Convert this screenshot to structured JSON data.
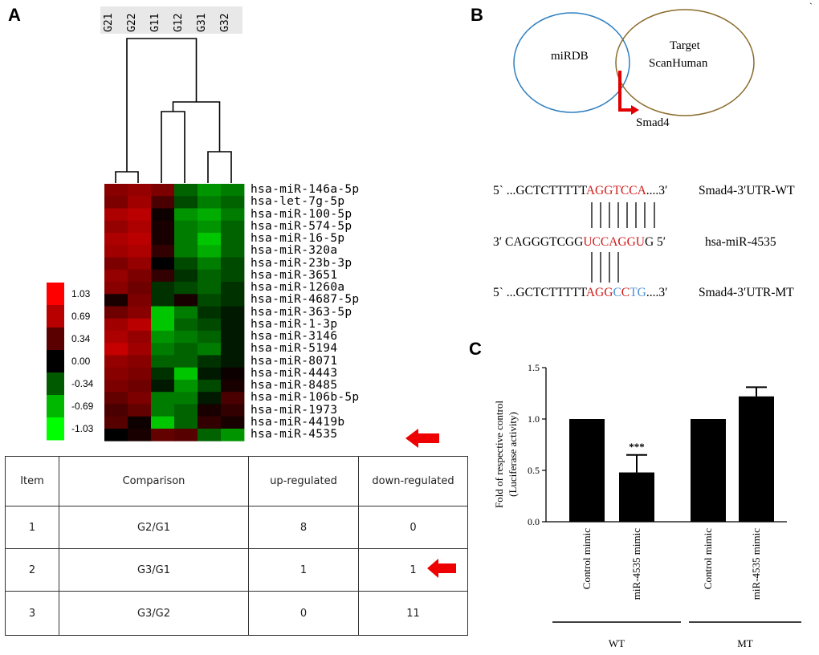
{
  "panels": {
    "a": "A",
    "b": "B",
    "c": "C"
  },
  "dendrogram": {
    "sample_labels": [
      "G21",
      "G22",
      "G11",
      "G12",
      "G31",
      "G32"
    ]
  },
  "heatmap": {
    "mirnas": [
      "hsa-miR-146a-5p",
      "hsa-let-7g-5p",
      "hsa-miR-100-5p",
      "hsa-miR-574-5p",
      "hsa-miR-16-5p",
      "hsa-miR-320a",
      "hsa-miR-23b-3p",
      "hsa-miR-3651",
      "hsa-miR-1260a",
      "hsa-miR-4687-5p",
      "hsa-miR-363-5p",
      "hsa-miR-1-3p",
      "hsa-miR-3146",
      "hsa-miR-5194",
      "hsa-miR-8071",
      "hsa-miR-4443",
      "hsa-miR-8485",
      "hsa-miR-106b-5p",
      "hsa-miR-1973",
      "hsa-miR-4419b",
      "hsa-miR-4535"
    ],
    "values": [
      [
        0.55,
        0.6,
        0.5,
        -0.4,
        -0.6,
        -0.5
      ],
      [
        0.5,
        0.65,
        0.3,
        -0.3,
        -0.5,
        -0.4
      ],
      [
        0.7,
        0.75,
        0.05,
        -0.6,
        -0.7,
        -0.5
      ],
      [
        0.6,
        0.7,
        0.1,
        -0.5,
        -0.6,
        -0.4
      ],
      [
        0.7,
        0.75,
        0.1,
        -0.5,
        -0.8,
        -0.4
      ],
      [
        0.65,
        0.7,
        0.2,
        -0.5,
        -0.7,
        -0.4
      ],
      [
        0.5,
        0.6,
        0.0,
        -0.3,
        -0.5,
        -0.3
      ],
      [
        0.6,
        0.5,
        0.2,
        -0.2,
        -0.4,
        -0.3
      ],
      [
        0.55,
        0.45,
        -0.2,
        -0.3,
        -0.4,
        -0.2
      ],
      [
        0.1,
        0.5,
        -0.2,
        0.1,
        -0.3,
        -0.2
      ],
      [
        0.45,
        0.55,
        -0.8,
        -0.5,
        -0.2,
        -0.1
      ],
      [
        0.65,
        0.75,
        -0.8,
        -0.4,
        -0.3,
        -0.1
      ],
      [
        0.7,
        0.6,
        -0.6,
        -0.5,
        -0.4,
        -0.1
      ],
      [
        0.8,
        0.65,
        -0.5,
        -0.4,
        -0.5,
        -0.1
      ],
      [
        0.6,
        0.55,
        -0.4,
        -0.4,
        -0.2,
        -0.1
      ],
      [
        0.55,
        0.5,
        -0.2,
        -0.8,
        -0.1,
        0.05
      ],
      [
        0.5,
        0.45,
        -0.1,
        -0.6,
        -0.3,
        0.1
      ],
      [
        0.4,
        0.5,
        -0.5,
        -0.5,
        -0.1,
        0.3
      ],
      [
        0.3,
        0.4,
        -0.5,
        -0.4,
        0.1,
        0.2
      ],
      [
        0.35,
        0.05,
        -0.8,
        -0.4,
        0.2,
        0.1
      ],
      [
        0.0,
        0.1,
        0.4,
        0.35,
        -0.4,
        -0.6
      ]
    ],
    "highlight_arrow_target": "hsa-miR-4535"
  },
  "color_scale": {
    "ticks": [
      "1.03",
      "0.69",
      "0.34",
      "0.00",
      "-0.34",
      "-0.69",
      "-1.03"
    ],
    "colors": [
      "#ff0000",
      "#b80000",
      "#5a0000",
      "#000000",
      "#005a00",
      "#00b800",
      "#00ff00"
    ]
  },
  "comparison_table": {
    "headers": [
      "Item",
      "Comparison",
      "up-regulated",
      "down-regulated"
    ],
    "rows": [
      [
        "1",
        "G2/G1",
        "8",
        "0"
      ],
      [
        "2",
        "G3/G1",
        "1",
        "1"
      ],
      [
        "3",
        "G3/G2",
        "0",
        "11"
      ]
    ]
  },
  "venn": {
    "left_label": "miRDB",
    "right_label_line1": "Target",
    "right_label_line2": "ScanHuman",
    "target_label": "Smad4",
    "left_color": "#2f7fbf",
    "right_color": "#8a6a2a",
    "arrow_color": "#e00000"
  },
  "sequences": {
    "wt_prefix": "5` ...GCTCTTTTT",
    "wt_site": "AGGTCCA",
    "wt_suffix": "....3′",
    "wt_label": "Smad4-3′UTR-WT",
    "mir_prefix": "3′ CAGGGTCGG",
    "mir_seed": "UCCAGGU",
    "mir_suffix": "G 5′",
    "mir_label": "hsa-miR-4535",
    "mt_prefix": "5` ...GCTCTTTTT",
    "mt_site_a": "AGG",
    "mt_site_b": "C",
    "mt_site_c": "C",
    "mt_site_d": "TG",
    "mt_suffix": "....3′",
    "mt_label": "Smad4-3′UTR-MT"
  },
  "chart_data": {
    "type": "bar",
    "ylabel_line1": "Fold of respective control",
    "ylabel_line2": "(Luciferase activity)",
    "ylim": [
      0.0,
      1.5
    ],
    "yticks": [
      "0.0",
      "0.5",
      "1.0",
      "1.5"
    ],
    "categories": [
      "Control mimic",
      "miR-4535 mimic",
      "Control mimic",
      "miR-4535 mimic"
    ],
    "values": [
      1.0,
      0.48,
      1.0,
      1.22
    ],
    "errors": [
      0,
      0.17,
      0,
      0.09
    ],
    "groups": [
      {
        "label": "WT"
      },
      {
        "label": "MT"
      }
    ],
    "annotation": "***"
  }
}
